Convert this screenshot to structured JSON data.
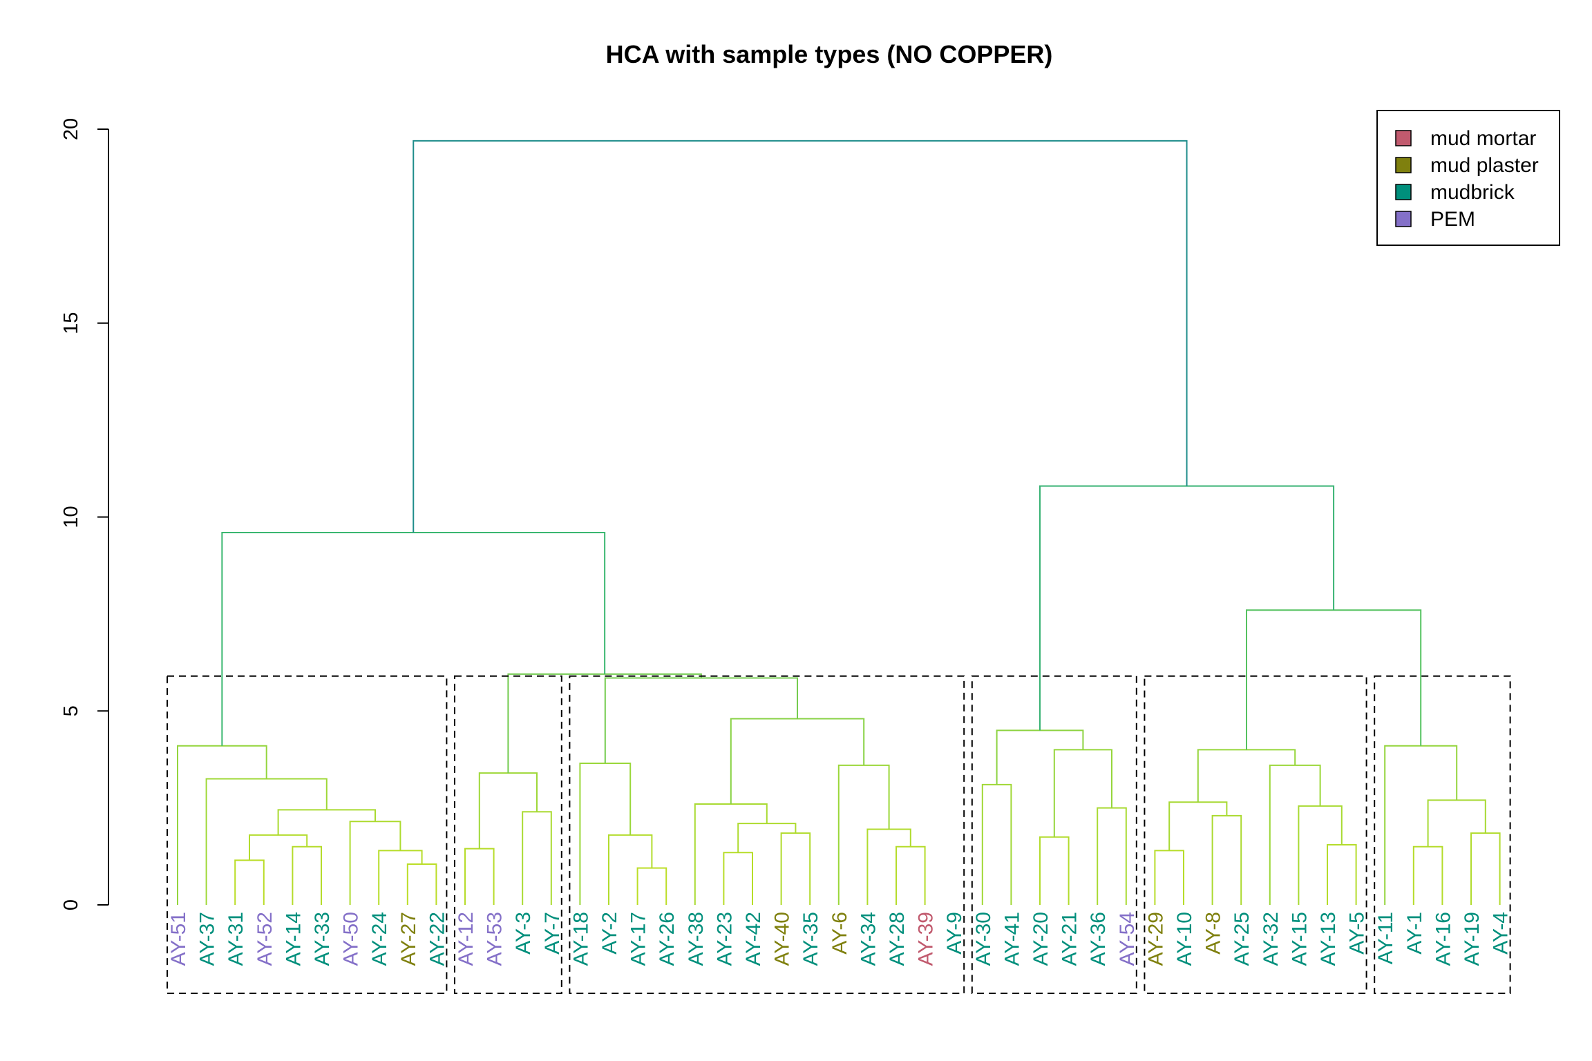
{
  "chart_data": {
    "type": "dendrogram",
    "title": "HCA with sample types (NO COPPER)",
    "xlabel": "",
    "ylabel": "",
    "ylim": [
      0,
      20
    ],
    "yticks": [
      0,
      5,
      10,
      15,
      20
    ],
    "grid": false,
    "legend_position": "top-right",
    "legend": [
      {
        "label": "mud mortar",
        "color": "#C15A6E"
      },
      {
        "label": "mud plaster",
        "color": "#7F800E"
      },
      {
        "label": "mudbrick",
        "color": "#008F7C"
      },
      {
        "label": "PEM",
        "color": "#8470C8"
      }
    ],
    "leaves": [
      {
        "label": "AY-51",
        "type": "PEM"
      },
      {
        "label": "AY-37",
        "type": "mudbrick"
      },
      {
        "label": "AY-31",
        "type": "mudbrick"
      },
      {
        "label": "AY-52",
        "type": "PEM"
      },
      {
        "label": "AY-14",
        "type": "mudbrick"
      },
      {
        "label": "AY-33",
        "type": "mudbrick"
      },
      {
        "label": "AY-50",
        "type": "PEM"
      },
      {
        "label": "AY-24",
        "type": "mudbrick"
      },
      {
        "label": "AY-27",
        "type": "mud plaster"
      },
      {
        "label": "AY-22",
        "type": "mudbrick"
      },
      {
        "label": "AY-12",
        "type": "PEM"
      },
      {
        "label": "AY-53",
        "type": "PEM"
      },
      {
        "label": "AY-3",
        "type": "mudbrick"
      },
      {
        "label": "AY-7",
        "type": "mudbrick"
      },
      {
        "label": "AY-18",
        "type": "mudbrick"
      },
      {
        "label": "AY-2",
        "type": "mudbrick"
      },
      {
        "label": "AY-17",
        "type": "mudbrick"
      },
      {
        "label": "AY-26",
        "type": "mudbrick"
      },
      {
        "label": "AY-38",
        "type": "mudbrick"
      },
      {
        "label": "AY-23",
        "type": "mudbrick"
      },
      {
        "label": "AY-42",
        "type": "mudbrick"
      },
      {
        "label": "AY-40",
        "type": "mud plaster"
      },
      {
        "label": "AY-35",
        "type": "mudbrick"
      },
      {
        "label": "AY-6",
        "type": "mud plaster"
      },
      {
        "label": "AY-34",
        "type": "mudbrick"
      },
      {
        "label": "AY-28",
        "type": "mudbrick"
      },
      {
        "label": "AY-39",
        "type": "mud mortar"
      },
      {
        "label": "AY-9",
        "type": "mudbrick"
      },
      {
        "label": "AY-30",
        "type": "mudbrick"
      },
      {
        "label": "AY-41",
        "type": "mudbrick"
      },
      {
        "label": "AY-20",
        "type": "mudbrick"
      },
      {
        "label": "AY-21",
        "type": "mudbrick"
      },
      {
        "label": "AY-36",
        "type": "mudbrick"
      },
      {
        "label": "AY-54",
        "type": "PEM"
      },
      {
        "label": "AY-29",
        "type": "mud plaster"
      },
      {
        "label": "AY-10",
        "type": "mudbrick"
      },
      {
        "label": "AY-8",
        "type": "mud plaster"
      },
      {
        "label": "AY-25",
        "type": "mudbrick"
      },
      {
        "label": "AY-32",
        "type": "mudbrick"
      },
      {
        "label": "AY-15",
        "type": "mudbrick"
      },
      {
        "label": "AY-13",
        "type": "mudbrick"
      },
      {
        "label": "AY-5",
        "type": "mudbrick"
      },
      {
        "label": "AY-11",
        "type": "mudbrick"
      },
      {
        "label": "AY-1",
        "type": "mudbrick"
      },
      {
        "label": "AY-16",
        "type": "mudbrick"
      },
      {
        "label": "AY-19",
        "type": "mudbrick"
      },
      {
        "label": "AY-4",
        "type": "mudbrick"
      }
    ],
    "merges": [
      {
        "a": 2,
        "b": 3,
        "h": 1.15
      },
      {
        "a": 4,
        "b": 5,
        "h": 1.5
      },
      {
        "a": "m0",
        "b": "m1",
        "h": 1.8
      },
      {
        "a": 8,
        "b": 9,
        "h": 1.05
      },
      {
        "a": 7,
        "b": "m3",
        "h": 1.4
      },
      {
        "a": 6,
        "b": "m4",
        "h": 2.15
      },
      {
        "a": "m2",
        "b": "m5",
        "h": 2.45
      },
      {
        "a": 1,
        "b": "m6",
        "h": 3.25
      },
      {
        "a": 0,
        "b": "m7",
        "h": 4.1
      },
      {
        "a": 10,
        "b": 11,
        "h": 1.45
      },
      {
        "a": 12,
        "b": 13,
        "h": 2.4
      },
      {
        "a": "m9",
        "b": "m10",
        "h": 3.4
      },
      {
        "a": 16,
        "b": 17,
        "h": 0.95
      },
      {
        "a": 15,
        "b": "m12",
        "h": 1.8
      },
      {
        "a": 14,
        "b": "m13",
        "h": 3.65
      },
      {
        "a": 19,
        "b": 20,
        "h": 1.35
      },
      {
        "a": "m15",
        "b": 22,
        "h": 2.1
      },
      {
        "a": 21,
        "b": 22,
        "h": 1.85
      },
      {
        "a": 19,
        "b": 20,
        "h": 1.35
      },
      {
        "a": 25,
        "b": 26,
        "h": 1.5
      },
      {
        "a": 24,
        "b": "m19",
        "h": 1.95
      },
      {
        "a": 23,
        "b": "m20",
        "h": 3.6
      },
      {
        "a": 18,
        "b": "m16",
        "h": 2.6
      },
      {
        "a": "m22",
        "b": "m21",
        "h": 4.8
      },
      {
        "a": "m14",
        "b": "m23",
        "h": 5.85
      },
      {
        "a": "m11",
        "b": "m24",
        "h": 5.95
      },
      {
        "a": "m8",
        "b": "m25",
        "h": 9.6
      },
      {
        "a": 28,
        "b": 29,
        "h": 3.1
      },
      {
        "a": 30,
        "b": 31,
        "h": 1.75
      },
      {
        "a": 32,
        "b": 33,
        "h": 2.5
      },
      {
        "a": "m28",
        "b": "m29",
        "h": 4.0
      },
      {
        "a": "m27",
        "b": "m30",
        "h": 4.5
      },
      {
        "a": 34,
        "b": 35,
        "h": 1.4
      },
      {
        "a": 36,
        "b": 37,
        "h": 2.3
      },
      {
        "a": "m32",
        "b": "m33",
        "h": 2.65
      },
      {
        "a": 40,
        "b": 41,
        "h": 1.55
      },
      {
        "a": 39,
        "b": "m35",
        "h": 2.55
      },
      {
        "a": 38,
        "b": "m36",
        "h": 3.6
      },
      {
        "a": "m34",
        "b": "m37",
        "h": 4.0
      },
      {
        "a": 43,
        "b": 44,
        "h": 1.5
      },
      {
        "a": 45,
        "b": 46,
        "h": 1.85
      },
      {
        "a": "m39",
        "b": "m40",
        "h": 2.7
      },
      {
        "a": 42,
        "b": "m41",
        "h": 4.1
      },
      {
        "a": "m38",
        "b": "m42",
        "h": 7.6
      },
      {
        "a": "m31",
        "b": "m43",
        "h": 10.8
      },
      {
        "a": "m26",
        "b": "m44",
        "h": 19.7
      }
    ],
    "clusters": [
      [
        0,
        9
      ],
      [
        10,
        13
      ],
      [
        14,
        27
      ],
      [
        28,
        33
      ],
      [
        34,
        41
      ],
      [
        42,
        46
      ]
    ],
    "cluster_box_height": 5.9
  }
}
